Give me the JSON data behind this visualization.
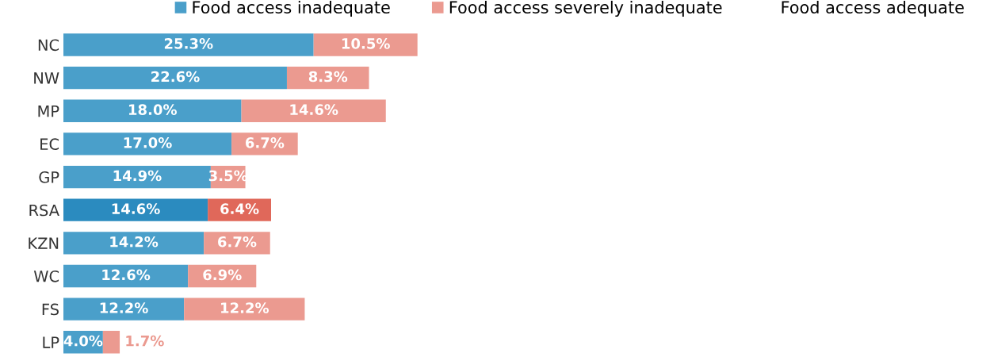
{
  "chart_data": {
    "type": "bar",
    "orientation": "horizontal",
    "stacked": true,
    "legend": "top",
    "grid": false,
    "categories": [
      "NC",
      "NW",
      "MP",
      "EC",
      "GP",
      "RSA",
      "KZN",
      "WC",
      "FS",
      "LP"
    ],
    "series": [
      {
        "name": "Food access inadequate",
        "color": "#4a9fca",
        "colors": [
          "#4a9fca",
          "#4a9fca",
          "#4a9fca",
          "#4a9fca",
          "#4a9fca",
          "#2b8bbf",
          "#4a9fca",
          "#4a9fca",
          "#4a9fca",
          "#4a9fca"
        ],
        "values": [
          25.3,
          22.6,
          18.0,
          17.0,
          14.9,
          14.6,
          14.2,
          12.6,
          12.2,
          4.0
        ],
        "value_labels": [
          "25.3%",
          "22.6%",
          "18.0%",
          "17.0%",
          "14.9%",
          "14.6%",
          "14.2%",
          "12.6%",
          "12.2%",
          "4.0%"
        ]
      },
      {
        "name": "Food access severely inadequate",
        "color": "#eb9a90",
        "colors": [
          "#eb9a90",
          "#eb9a90",
          "#eb9a90",
          "#eb9a90",
          "#eb9a90",
          "#e0685a",
          "#eb9a90",
          "#eb9a90",
          "#eb9a90",
          "#eb9a90"
        ],
        "values": [
          10.5,
          8.3,
          14.6,
          6.7,
          3.5,
          6.4,
          6.7,
          6.9,
          12.2,
          1.7
        ],
        "value_labels": [
          "10.5%",
          "8.3%",
          "14.6%",
          "6.7%",
          "3.5%",
          "6.4%",
          "6.7%",
          "6.9%",
          "12.2%",
          "1.7%"
        ]
      },
      {
        "name": "Food access adequate",
        "values": [
          null,
          null,
          null,
          null,
          null,
          null,
          null,
          null,
          null,
          null
        ]
      }
    ]
  }
}
